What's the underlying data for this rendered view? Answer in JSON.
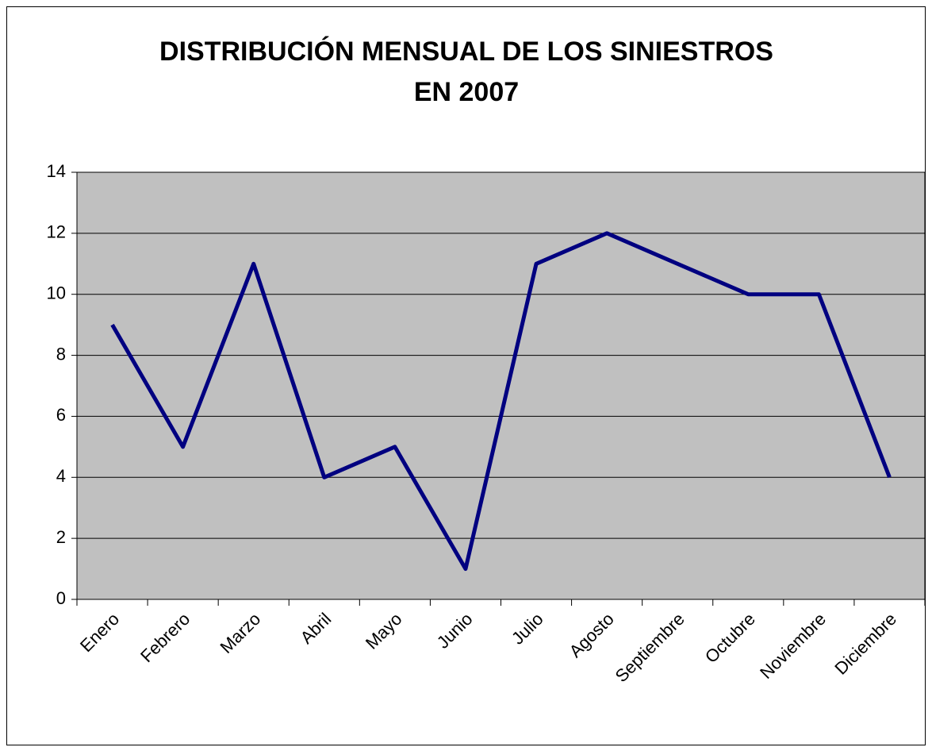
{
  "chart_data": {
    "type": "line",
    "title": [
      "DISTRIBUCIÓN MENSUAL DE LOS SINIESTROS",
      "EN 2007"
    ],
    "categories": [
      "Enero",
      "Febrero",
      "Marzo",
      "Abril",
      "Mayo",
      "Junio",
      "Julio",
      "Agosto",
      "Septiembre",
      "Octubre",
      "Noviembre",
      "Diciembre"
    ],
    "values": [
      9,
      5,
      11,
      4,
      5,
      1,
      11,
      12,
      11,
      10,
      10,
      4
    ],
    "color": "#000080",
    "ylim": [
      0,
      14
    ],
    "yticks": [
      0,
      2,
      4,
      6,
      8,
      10,
      12,
      14
    ],
    "grid": true
  }
}
